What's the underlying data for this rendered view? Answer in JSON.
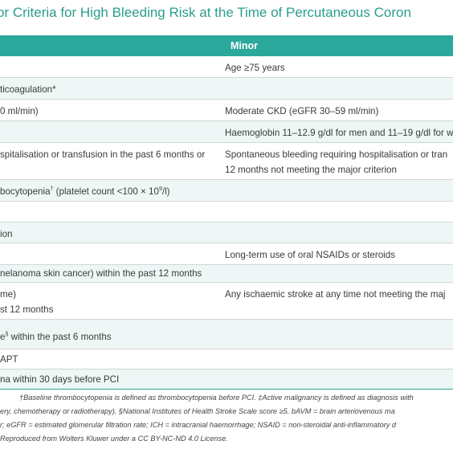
{
  "title": "or Criteria for High Bleeding Risk at the Time of Percutaneous Coron",
  "header": {
    "minor": "Minor"
  },
  "rows": [
    {
      "major": "",
      "minor": "Age ≥75 years"
    },
    {
      "major": "ticoagulation*",
      "minor": ""
    },
    {
      "major": "0 ml/min)",
      "minor": "Moderate CKD (eGFR 30–59 ml/min)"
    },
    {
      "major": "",
      "minor": "Haemoglobin 11–12.9 g/dl for men and 11–19 g/dl for w"
    },
    {
      "major": "spitalisation or transfusion in the past 6 months or",
      "minor": "Spontaneous bleeding requiring hospitalisation or tran",
      "minor2": "12 months not meeting the major criterion"
    },
    {
      "major": "bocytopenia",
      "major_sup": "†",
      "major_rest": " (platelet count <100 × 10",
      "major_sup2": "9",
      "major_end": "/l)",
      "minor": ""
    },
    {
      "major": "",
      "minor": ""
    },
    {
      "major": "ion",
      "minor": ""
    },
    {
      "major": "",
      "minor": "Long-term use of oral NSAIDs or steroids"
    },
    {
      "major": "nelanoma skin cancer) within the past 12 months",
      "minor": ""
    },
    {
      "major": "me)",
      "major2": "st 12 months",
      "minor": "Any ischaemic stroke at any time not meeting the maj"
    },
    {
      "major": "e",
      "major_sup": "§",
      "major_rest": " within the past 6 months",
      "minor": ""
    },
    {
      "major": "APT",
      "minor": ""
    },
    {
      "major": "na within 30 days before PCI",
      "minor": ""
    }
  ],
  "footnotes": [
    "†Baseline thrombocytopenia is defined as thrombocytopenia before PCI. ‡Active malignancy is defined as diagnosis with",
    "ery, chemotherapy or radiotherapy). §National Institutes of Health Stroke Scale score ≥5. bAVM = brain arteriovenous ma",
    "r; eGFR = estimated glomerular filtration rate; ICH = intracranial haemorrhage; NSAID = non-steroidal anti-inflammatory d",
    "Reproduced from Wolters Kluwer under a CC BY-NC-ND 4.0 License."
  ]
}
